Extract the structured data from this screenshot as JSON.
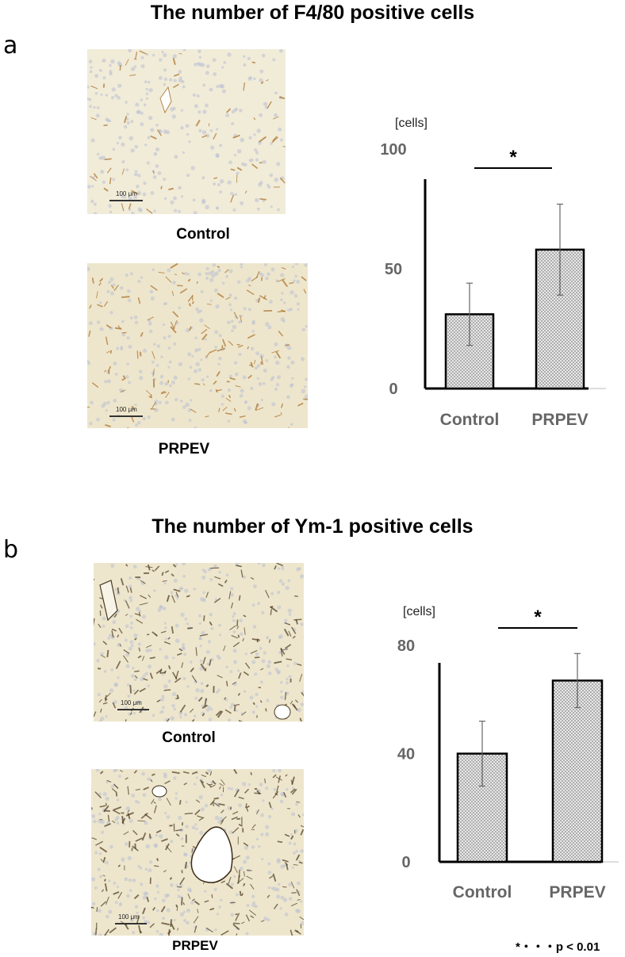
{
  "panel_a": {
    "letter": "a",
    "title": "The number of F4/80 positive cells",
    "image_labels": [
      "Control",
      "PRPEV"
    ],
    "scale_bar": "100 μm"
  },
  "panel_b": {
    "letter": "b",
    "title": "The number of Ym-1 positive cells",
    "image_labels": [
      "Control",
      "PRPEV"
    ],
    "scale_bar": "100 μm"
  },
  "footnote": "*・・・p < 0.01",
  "colors": {
    "bar_fill": "#e8e8e8",
    "bar_dots": "#555555",
    "axis": "#000000",
    "tick_text": "#666666",
    "error": "#666666"
  },
  "chart_data": [
    {
      "type": "bar",
      "title": "",
      "ylabel": "[cells]",
      "xlabel": "",
      "categories": [
        "Control",
        "PRPEV"
      ],
      "values": [
        31,
        58
      ],
      "error": [
        13,
        19
      ],
      "ylim": [
        0,
        100
      ],
      "yticks": [
        0,
        50,
        100
      ],
      "significance": {
        "between": [
          "Control",
          "PRPEV"
        ],
        "label": "*"
      }
    },
    {
      "type": "bar",
      "title": "",
      "ylabel": "[cells]",
      "xlabel": "",
      "categories": [
        "Control",
        "PRPEV"
      ],
      "values": [
        40,
        67
      ],
      "error": [
        12,
        10
      ],
      "ylim": [
        0,
        80
      ],
      "yticks": [
        0,
        40,
        80
      ],
      "significance": {
        "between": [
          "Control",
          "PRPEV"
        ],
        "label": "*"
      }
    }
  ]
}
